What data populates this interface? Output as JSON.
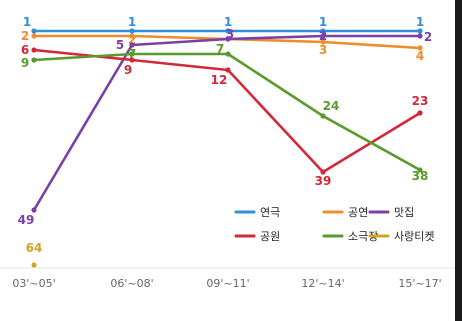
{
  "chart_data": {
    "type": "line",
    "title": "",
    "xlabel": "",
    "ylabel": "",
    "categories": [
      "03'~05'",
      "06'~08'",
      "09'~11'",
      "12'~14'",
      "15'~17'"
    ],
    "y_scale": "rank",
    "grid": false,
    "legend_position": "bottom-right",
    "series": [
      {
        "name": "연극",
        "color": "#2f8fd8",
        "values": [
          1,
          1,
          1,
          1,
          1
        ]
      },
      {
        "name": "공연",
        "color": "#f08c2c",
        "values": [
          2,
          2,
          null,
          3,
          4
        ]
      },
      {
        "name": "맛집",
        "color": "#7b3fa8",
        "values": [
          49,
          5,
          3,
          2,
          2
        ]
      },
      {
        "name": "공원",
        "color": "#d3283a",
        "values": [
          6,
          9,
          12,
          39,
          23
        ]
      },
      {
        "name": "소극장",
        "color": "#5a9a2c",
        "values": [
          9,
          7,
          7,
          24,
          38
        ]
      },
      {
        "name": "사랑티켓",
        "color": "#d2a420",
        "values": [
          64,
          null,
          null,
          null,
          null
        ]
      }
    ]
  }
}
